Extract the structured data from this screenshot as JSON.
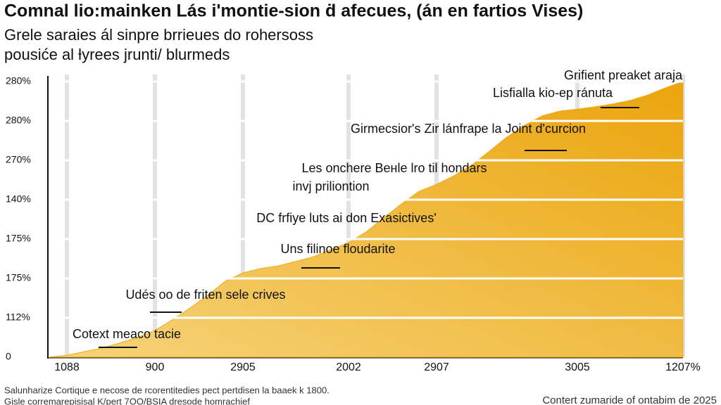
{
  "chart_data": {
    "type": "area",
    "title": "Comnal lio:mainken Lás i'montie-sion ḋ afecues, (án en fartios Vises)",
    "subtitle": [
      "Grele saraies ál sinpre brrieues do rohersoss",
      "pousiće al ƚyrees jrunti/ blurmeds"
    ],
    "categories": [
      null,
      "1088",
      null,
      null,
      null,
      null,
      "900",
      null,
      null,
      null,
      null,
      "2905",
      null,
      null,
      null,
      null,
      null,
      "2002",
      null,
      null,
      null,
      null,
      "2907",
      null,
      null,
      null,
      null,
      null,
      null,
      null,
      "3005",
      null,
      null,
      null,
      null,
      null,
      "1207%"
    ],
    "values": [
      0,
      0.05,
      0.14,
      0.23,
      0.36,
      0.5,
      0.68,
      0.95,
      1.25,
      1.57,
      1.93,
      2.14,
      2.25,
      2.32,
      2.43,
      2.55,
      2.73,
      2.91,
      3.18,
      3.54,
      3.89,
      4.21,
      4.39,
      4.61,
      4.88,
      5.23,
      5.59,
      5.89,
      6.13,
      6.25,
      6.3,
      6.36,
      6.43,
      6.52,
      6.66,
      6.84,
      7
    ],
    "color": "#eeaa12",
    "ylim": [
      0,
      7
    ],
    "yticks": [
      {
        "value": 0,
        "label": "0"
      },
      {
        "value": 1,
        "label": "112%"
      },
      {
        "value": 2,
        "label": "175%"
      },
      {
        "value": 3,
        "label": "175%"
      },
      {
        "value": 4,
        "label": "140%"
      },
      {
        "value": 5,
        "label": "270%"
      },
      {
        "value": 6,
        "label": "280%"
      },
      {
        "value": 7,
        "label": "280%"
      }
    ],
    "grid": true,
    "annotations": [
      "Grifient preaket araja",
      "Lisfialla kio-ep ránuta",
      "Girmecsior's Zir lánfrape la Joint d'curcion",
      "Les onchere Bенle lro til hondars",
      "invj priliontion",
      "DC frfiye luts ai don Exasictives'",
      "Uns filinoe floudarite",
      "Udés oo de friten sele crives",
      "Cotext meaco tacie"
    ],
    "footnotes": [
      "Salunharize Cortique e necose de rcorentitedies pect pertdisen la baaek k 1800.",
      "Gisle corremarepisisal K/pert 7OO/BSIA dresode homrachief"
    ],
    "source": "Contert zumaride of ontabim de 2025"
  }
}
